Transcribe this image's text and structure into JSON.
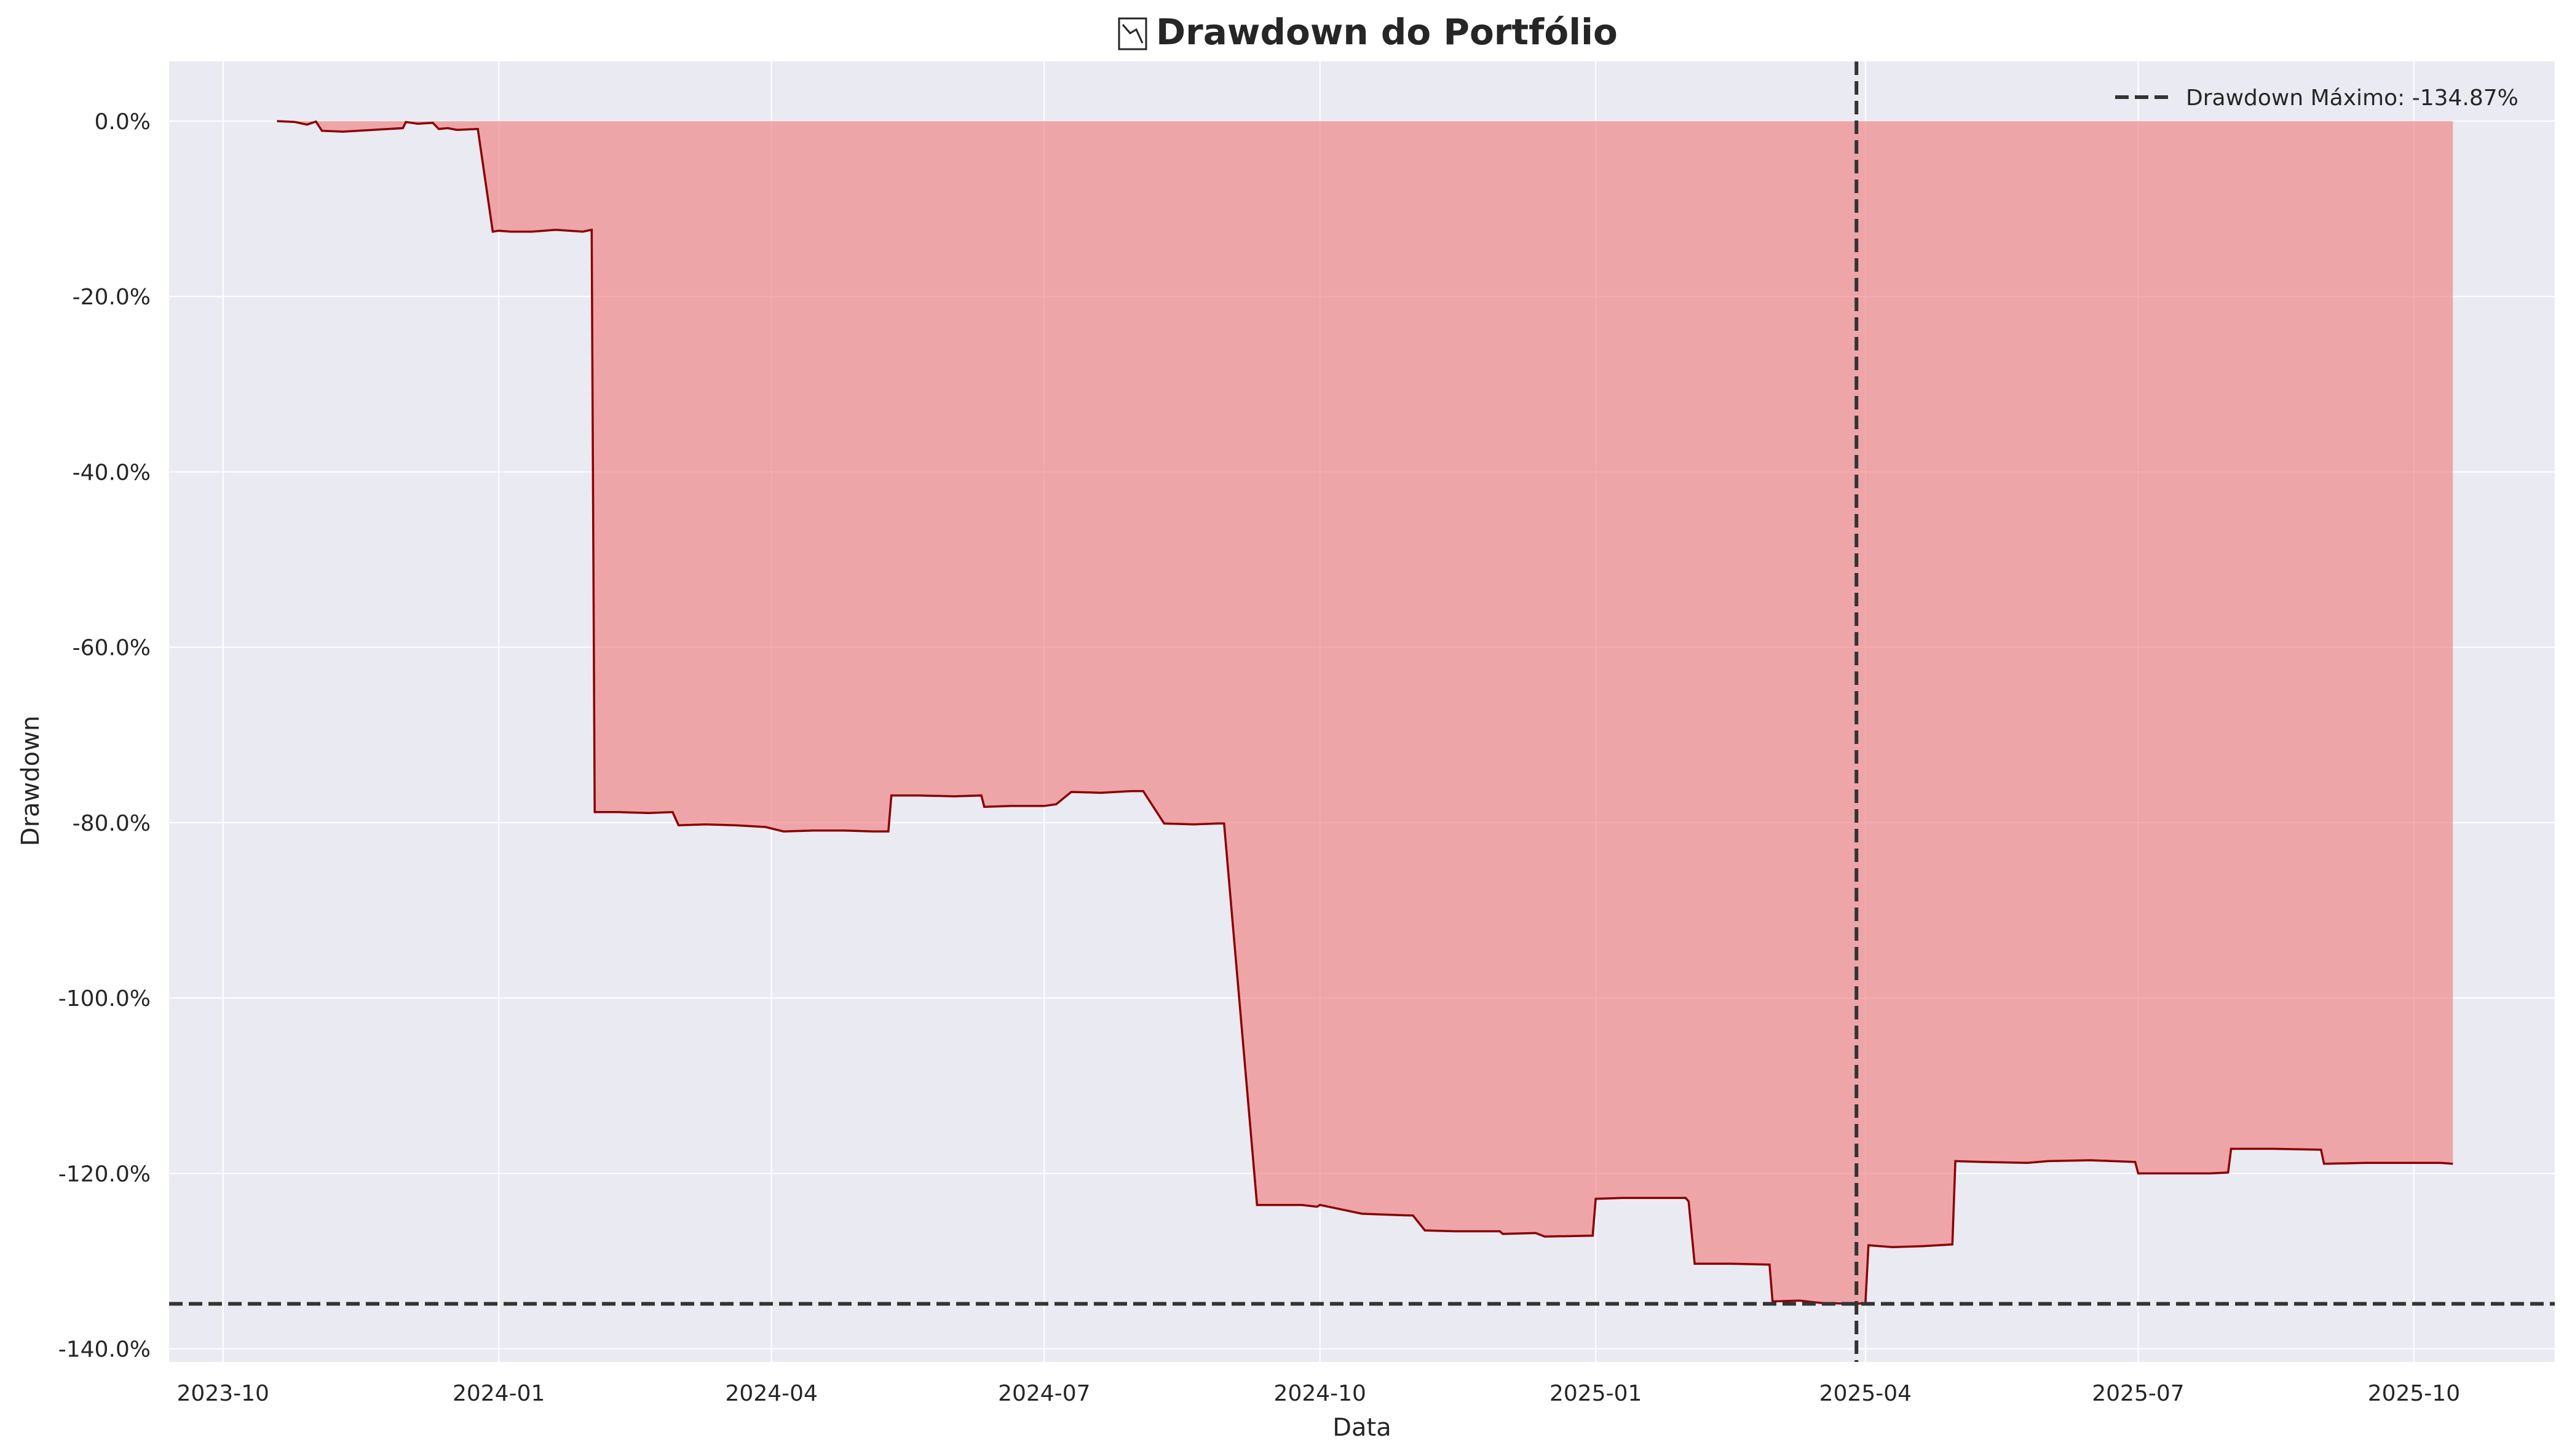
{
  "chart_data": {
    "type": "area",
    "title": "Drawdown do Portfólio",
    "title_icon": "chart-down-icon",
    "xlabel": "Data",
    "ylabel": "Drawdown",
    "x_ticks": [
      "2023-10",
      "2024-01",
      "2024-04",
      "2024-07",
      "2024-10",
      "2025-01",
      "2025-04",
      "2025-07",
      "2025-10"
    ],
    "x_range": [
      "2023-09-13",
      "2025-11-17"
    ],
    "y_ticks": [
      "0.0%",
      "-20.0%",
      "-40.0%",
      "-60.0%",
      "-80.0%",
      "-100.0%",
      "-120.0%",
      "-140.0%"
    ],
    "y_tick_values": [
      0,
      -20,
      -40,
      -60,
      -80,
      -100,
      -120,
      -140
    ],
    "ylim": [
      -141.5,
      6.8
    ],
    "grid": true,
    "legend": {
      "position": "top-right",
      "label": "Drawdown Máximo: -134.87%"
    },
    "max_drawdown": -134.87,
    "max_drawdown_date": "2025-03-29",
    "colors": {
      "fill": "#f08080",
      "line": "#8b0000",
      "reference": "#333333",
      "background": "#eaeaf2"
    },
    "series": [
      {
        "x": [
          "2023-10-19",
          "2023-10-25",
          "2023-10-29",
          "2023-11-01",
          "2023-11-03",
          "2023-11-10",
          "2023-11-20",
          "2023-11-30",
          "2023-12-01",
          "2023-12-05",
          "2023-12-10",
          "2023-12-12",
          "2023-12-15",
          "2023-12-18",
          "2023-12-25",
          "2023-12-30",
          "2024-01-01",
          "2024-01-05",
          "2024-01-12",
          "2024-01-20",
          "2024-01-29",
          "2024-02-01",
          "2024-02-02",
          "2024-02-10",
          "2024-02-20",
          "2024-02-28",
          "2024-03-01",
          "2024-03-10",
          "2024-03-20",
          "2024-03-30",
          "2024-04-05",
          "2024-04-15",
          "2024-04-25",
          "2024-05-05",
          "2024-05-10",
          "2024-05-11",
          "2024-05-20",
          "2024-06-01",
          "2024-06-10",
          "2024-06-11",
          "2024-06-20",
          "2024-07-01",
          "2024-07-05",
          "2024-07-10",
          "2024-07-20",
          "2024-07-30",
          "2024-08-03",
          "2024-08-10",
          "2024-08-20",
          "2024-08-28",
          "2024-08-30",
          "2024-09-10",
          "2024-09-25",
          "2024-09-30",
          "2024-10-01",
          "2024-10-15",
          "2024-10-31",
          "2024-11-01",
          "2024-11-05",
          "2024-11-15",
          "2024-11-30",
          "2024-12-01",
          "2024-12-12",
          "2024-12-15",
          "2024-12-31",
          "2025-01-01",
          "2025-01-10",
          "2025-01-20",
          "2025-01-31",
          "2025-02-01",
          "2025-02-03",
          "2025-02-15",
          "2025-02-28",
          "2025-03-01",
          "2025-03-10",
          "2025-03-15",
          "2025-03-18",
          "2025-03-29",
          "2025-04-01",
          "2025-04-02",
          "2025-04-10",
          "2025-04-20",
          "2025-04-30",
          "2025-05-01",
          "2025-05-10",
          "2025-05-25",
          "2025-06-01",
          "2025-06-15",
          "2025-06-30",
          "2025-07-01",
          "2025-07-10",
          "2025-07-25",
          "2025-07-31",
          "2025-08-01",
          "2025-08-15",
          "2025-08-31",
          "2025-09-01",
          "2025-09-15",
          "2025-09-30",
          "2025-10-10",
          "2025-10-14"
        ],
        "y": [
          0.0,
          -0.1,
          -0.4,
          -0.05,
          -1.1,
          -1.2,
          -1.0,
          -0.8,
          -0.1,
          -0.3,
          -0.2,
          -0.9,
          -0.8,
          -1.0,
          -0.9,
          -12.6,
          -12.5,
          -12.6,
          -12.6,
          -12.4,
          -12.6,
          -12.4,
          -78.8,
          -78.8,
          -78.9,
          -78.8,
          -80.3,
          -80.2,
          -80.3,
          -80.5,
          -81.0,
          -80.9,
          -80.9,
          -81.0,
          -81.0,
          -76.9,
          -76.9,
          -77.0,
          -76.9,
          -78.2,
          -78.1,
          -78.1,
          -77.9,
          -76.5,
          -76.6,
          -76.4,
          -76.4,
          -80.1,
          -80.2,
          -80.1,
          -80.1,
          -123.6,
          -123.6,
          -123.8,
          -123.6,
          -124.6,
          -124.8,
          -124.8,
          -126.5,
          -126.6,
          -126.6,
          -126.9,
          -126.8,
          -127.2,
          -127.1,
          -122.9,
          -122.8,
          -122.8,
          -122.8,
          -123.2,
          -130.3,
          -130.3,
          -130.4,
          -134.6,
          -134.5,
          -134.7,
          -134.8,
          -134.87,
          -134.8,
          -128.2,
          -128.4,
          -128.3,
          -128.1,
          -118.6,
          -118.7,
          -118.8,
          -118.6,
          -118.5,
          -118.7,
          -120.0,
          -120.0,
          -120.0,
          -119.9,
          -117.2,
          -117.2,
          -117.3,
          -118.9,
          -118.8,
          -118.8,
          -118.8,
          -118.9
        ]
      }
    ]
  }
}
